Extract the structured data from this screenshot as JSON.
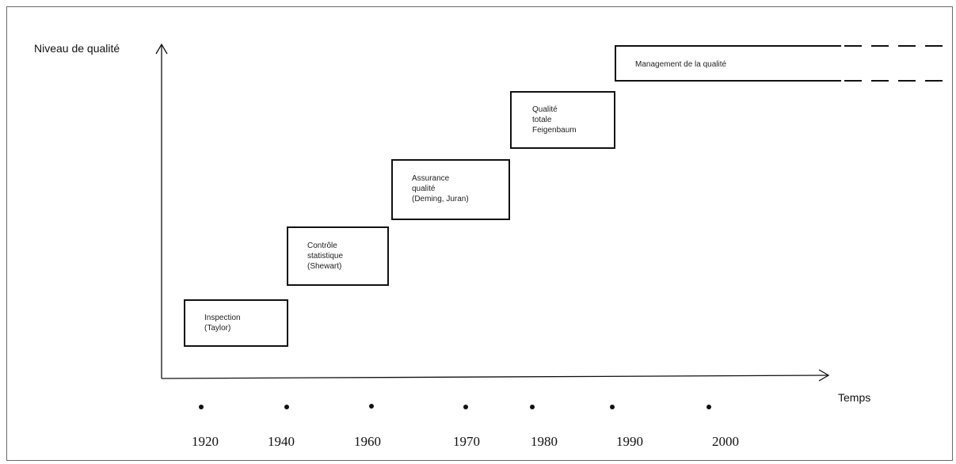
{
  "axis": {
    "y_label": "Niveau de qualité",
    "x_label": "Temps"
  },
  "stages": [
    {
      "lines": "Inspection\n(Taylor)"
    },
    {
      "lines": "Contrôle\nstatistique\n(Shewart)"
    },
    {
      "lines": "Assurance\nqualité\n(Deming, Juran)"
    },
    {
      "lines": "Qualité\ntotale\nFeigenbaum"
    },
    {
      "lines": "Management de la qualité"
    }
  ],
  "timeline": {
    "years": [
      "1920",
      "1940",
      "1960",
      "1970",
      "1980",
      "1990",
      "2000"
    ]
  }
}
